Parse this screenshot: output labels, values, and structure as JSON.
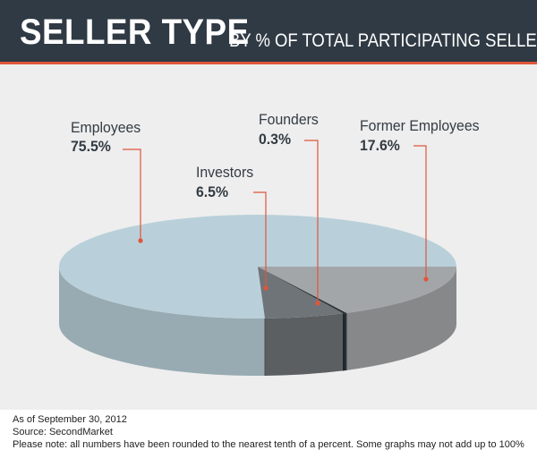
{
  "header": {
    "title": "SELLER TYPE",
    "subtitle": "BY % OF TOTAL PARTICIPATING SELLERS"
  },
  "chart_data": {
    "type": "pie",
    "style": "3d",
    "slices": [
      {
        "label": "Employees",
        "value_label": "75.5%",
        "value": 75.5,
        "color": "#b9d0da"
      },
      {
        "label": "Investors",
        "value_label": "6.5%",
        "value": 6.5,
        "color": "#6f7478"
      },
      {
        "label": "Founders",
        "value_label": "0.3%",
        "value": 0.3,
        "color": "#2a3238"
      },
      {
        "label": "Former Employees",
        "value_label": "17.6%",
        "value": 17.6,
        "color": "#a3a6a8"
      }
    ],
    "leader_color": "#e0553a"
  },
  "footer": {
    "asof": "As of September 30, 2012",
    "source": "Source: SecondMarket",
    "note": "Please note: all numbers have been rounded to the nearest tenth of a percent. Some graphs may not add up to 100%"
  }
}
